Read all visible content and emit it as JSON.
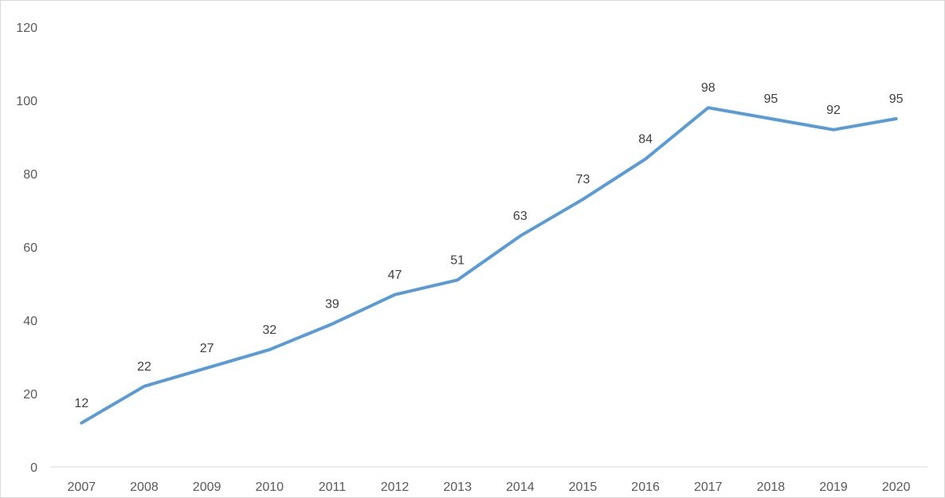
{
  "chart_data": {
    "type": "line",
    "categories": [
      "2007",
      "2008",
      "2009",
      "2010",
      "2011",
      "2012",
      "2013",
      "2014",
      "2015",
      "2016",
      "2017",
      "2018",
      "2019",
      "2020"
    ],
    "series": [
      {
        "values": [
          12,
          22,
          27,
          32,
          39,
          47,
          51,
          63,
          73,
          84,
          98,
          95,
          92,
          95
        ],
        "color": "#5b9bd5"
      }
    ],
    "data_labels": [
      "12",
      "22",
      "27",
      "32",
      "39",
      "47",
      "51",
      "63",
      "73",
      "84",
      "98",
      "95",
      "92",
      "95"
    ],
    "ylim": [
      0,
      120
    ],
    "y_ticks": [
      0,
      20,
      40,
      60,
      80,
      100,
      120
    ],
    "y_tick_labels": [
      "0",
      "20",
      "40",
      "60",
      "80",
      "100",
      "120"
    ],
    "grid": false,
    "legend": "none",
    "title": "",
    "xlabel": "",
    "ylabel": ""
  }
}
